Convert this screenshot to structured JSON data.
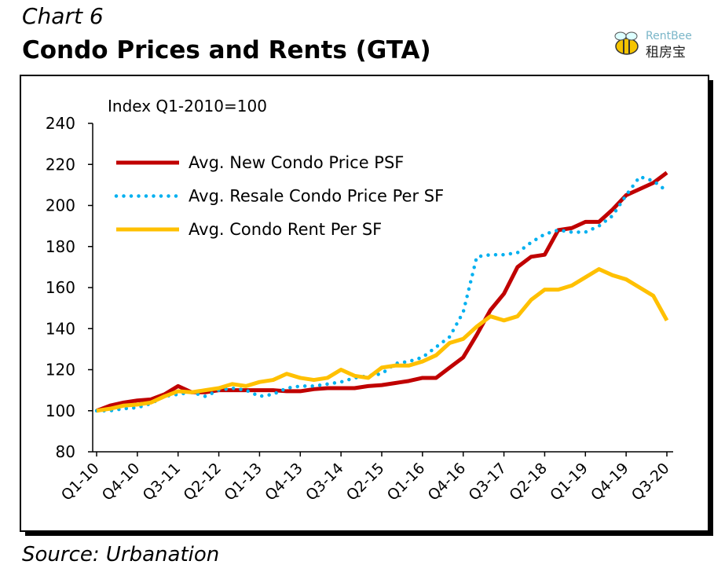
{
  "chart_data": {
    "type": "line",
    "kicker": "Chart 6",
    "title": "Condo Prices and Rents (GTA)",
    "annotation": "Index Q1-2010=100",
    "source": "Source: Urbanation",
    "logo": {
      "name": "RentBee",
      "subtitle": "租房宝"
    },
    "categories": [
      "Q1-10",
      null,
      null,
      "Q4-10",
      null,
      null,
      "Q3-11",
      null,
      null,
      "Q2-12",
      null,
      null,
      "Q1-13",
      null,
      null,
      "Q4-13",
      null,
      null,
      "Q3-14",
      null,
      null,
      "Q2-15",
      null,
      null,
      "Q1-16",
      null,
      null,
      "Q4-16",
      null,
      null,
      "Q3-17",
      null,
      null,
      "Q2-18",
      null,
      null,
      "Q1-19",
      null,
      null,
      "Q4-19",
      null,
      null,
      "Q3-20"
    ],
    "series": [
      {
        "name": "Avg. New Condo Price PSF",
        "color": "#c00000",
        "style": "solid",
        "values": [
          100,
          102.5,
          104,
          105,
          105.5,
          108,
          112,
          109,
          109,
          110,
          110,
          110,
          110,
          110,
          109.5,
          109.5,
          110.5,
          111,
          111,
          111,
          112,
          112.5,
          113.5,
          114.5,
          116,
          116,
          121,
          126,
          137,
          149,
          157,
          170,
          175,
          176,
          188,
          189,
          192,
          192,
          198,
          205,
          208,
          211,
          216
        ]
      },
      {
        "name": "Avg. Resale Condo Price Per SF",
        "color": "#00b0f0",
        "style": "dotted",
        "values": [
          100,
          100,
          101,
          101.5,
          103.5,
          107,
          108,
          109,
          107,
          110,
          111,
          110,
          107,
          108,
          111,
          112,
          112,
          113,
          114,
          116,
          117,
          118,
          123,
          124,
          126,
          131,
          136,
          148,
          175,
          176,
          176,
          177,
          182,
          186,
          188,
          187,
          187,
          190,
          195,
          205,
          214,
          212,
          207
        ]
      },
      {
        "name": "Avg. Condo Rent Per SF",
        "color": "#ffc000",
        "style": "solid",
        "values": [
          100,
          101,
          102.5,
          103,
          104,
          107,
          109.5,
          109,
          110,
          111,
          113,
          112,
          114,
          115,
          118,
          116,
          115,
          116,
          120,
          117,
          116,
          121,
          122,
          122,
          124,
          127,
          133,
          135,
          141,
          146,
          144,
          146,
          154,
          159,
          159,
          161,
          165,
          169,
          166,
          164,
          160,
          156,
          144
        ]
      }
    ],
    "ylim": [
      80,
      240
    ],
    "yticks": [
      80,
      100,
      120,
      140,
      160,
      180,
      200,
      220,
      240
    ],
    "legend": "upper left",
    "grid": false
  }
}
